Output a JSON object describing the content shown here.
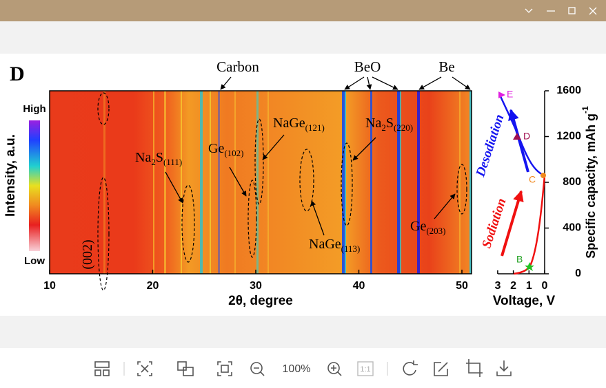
{
  "figure": {
    "panel_label": "D",
    "phase_labels": [
      {
        "text": "Carbon"
      },
      {
        "text": "BeO"
      },
      {
        "text": "Be"
      }
    ],
    "colorbar": {
      "high": "High",
      "low": "Low"
    },
    "y_label": "Intensity, a.u.",
    "x_label": "2θ, degree",
    "x_ticks": [
      10,
      20,
      30,
      40,
      50
    ],
    "peaks": [
      {
        "parts": [
          "(002)"
        ]
      },
      {
        "parts": [
          "Na",
          "2",
          "S",
          "(111)"
        ]
      },
      {
        "parts": [
          "Ge",
          "(102)"
        ]
      },
      {
        "parts": [
          "NaGe",
          "(121)"
        ]
      },
      {
        "parts": [
          "Na",
          "2",
          "S",
          "(220)"
        ]
      },
      {
        "parts": [
          "NaGe",
          "(113)"
        ]
      },
      {
        "parts": [
          "Ge",
          "(203)"
        ]
      }
    ],
    "right_panel": {
      "points": [
        "E",
        "D",
        "C",
        "B"
      ],
      "desodiation": "Desodiation",
      "sodiation": "Sodiation",
      "y_ticks": [
        0,
        400,
        800,
        1200,
        1600
      ],
      "y_label": "Specific capacity, mAh g",
      "y_label_sup": "-1",
      "x_ticks": [
        3,
        2,
        1,
        0
      ],
      "x_label": "Voltage, V"
    }
  },
  "toolbar": {
    "actual_size": "1:1",
    "zoom": "100%"
  }
}
